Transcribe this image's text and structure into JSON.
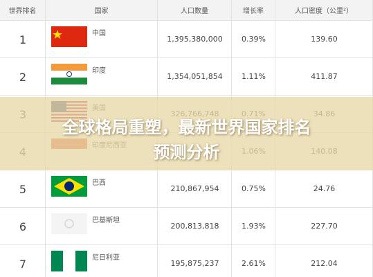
{
  "table": {
    "columns": [
      "世界排名",
      "国家",
      "人口数量",
      "增长率",
      "人口密度（公里²）"
    ],
    "rows": [
      [
        "1",
        "中国",
        "1,395,380,000",
        "0.39%",
        "139.60"
      ],
      [
        "2",
        "印度",
        "1,354,051,854",
        "1.11%",
        "411.87"
      ],
      [
        "3",
        "美国",
        "326,766,748",
        "0.71%",
        "34.86"
      ],
      [
        "4",
        "印度尼西亚",
        null,
        "1.06%",
        "140.08"
      ],
      [
        "5",
        "巴西",
        "210,867,954",
        "0.75%",
        "24.76"
      ],
      [
        "6",
        "巴基斯坦",
        "200,813,818",
        "1.93%",
        "227.70"
      ],
      [
        "7",
        "尼日利亚",
        "195,875,237",
        "2.61%",
        "212.04"
      ]
    ]
  },
  "banner": {
    "title_line1": "全球格局重塑，最新世界国家排名",
    "title_line2": "预测分析"
  }
}
